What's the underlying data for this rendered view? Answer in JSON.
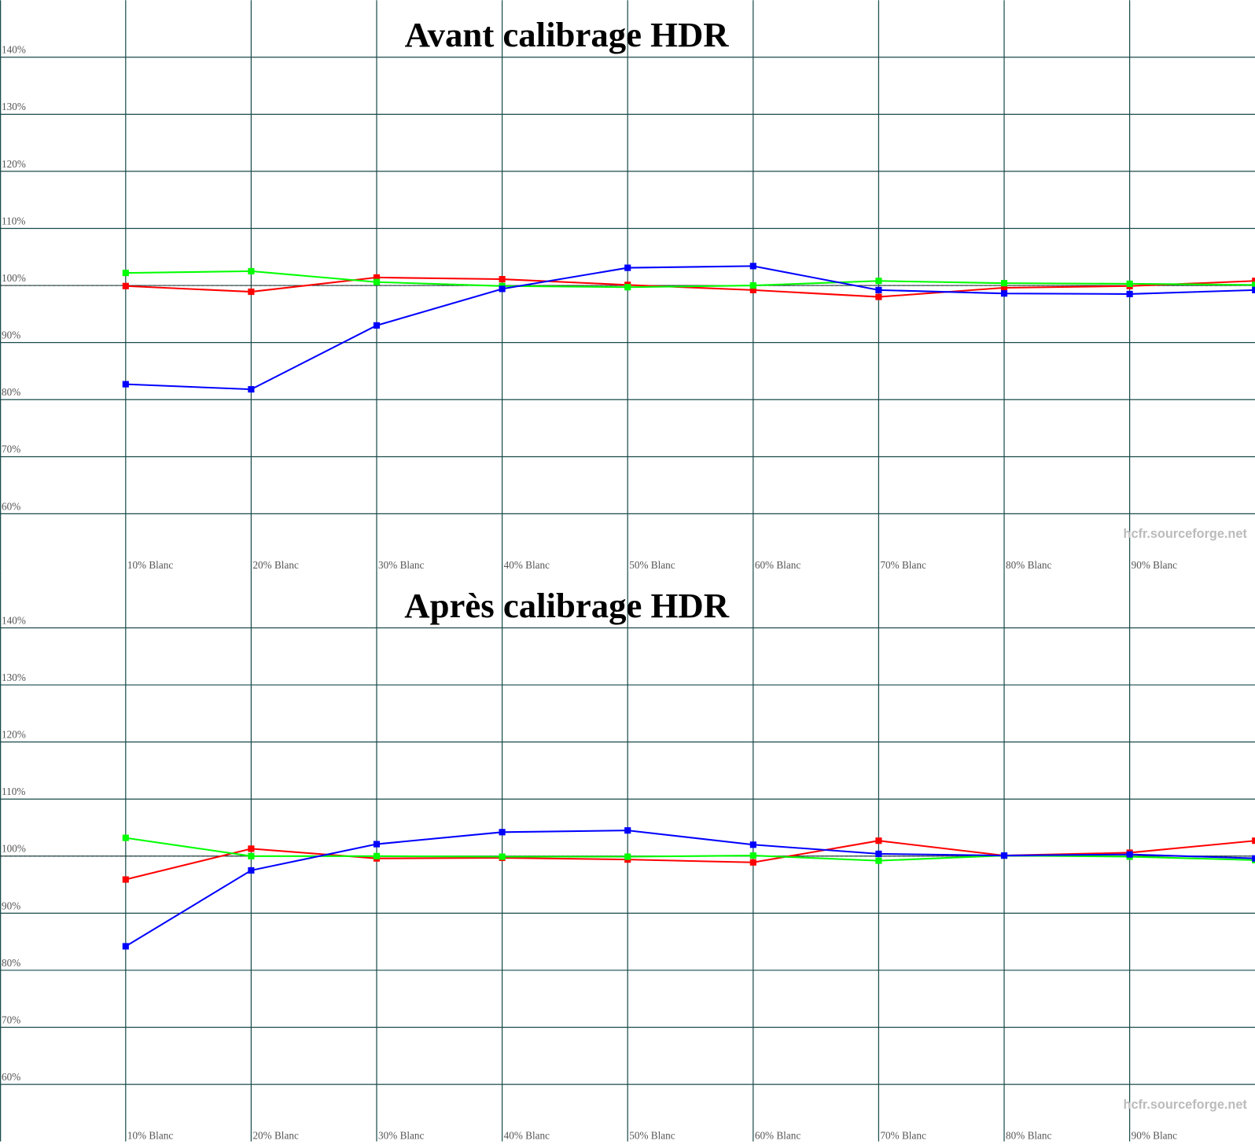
{
  "chart_data": [
    {
      "type": "line",
      "title": "Avant calibrage HDR",
      "watermark": "hcfr.sourceforge.net",
      "categories": [
        "10% Blanc",
        "20% Blanc",
        "30% Blanc",
        "40% Blanc",
        "50% Blanc",
        "60% Blanc",
        "70% Blanc",
        "80% Blanc",
        "90% Blanc",
        null
      ],
      "series": [
        {
          "color": "#ff0000",
          "values": [
            99.9,
            98.9,
            101.4,
            101.1,
            100.1,
            99.2,
            98.0,
            99.6,
            99.9,
            100.8
          ]
        },
        {
          "color": "#00ff00",
          "values": [
            102.2,
            102.5,
            100.6,
            99.9,
            99.7,
            100.0,
            100.8,
            100.4,
            100.3,
            100.1
          ]
        },
        {
          "color": "#0000ff",
          "values": [
            82.7,
            81.8,
            93.0,
            99.4,
            103.1,
            103.4,
            99.2,
            98.6,
            98.5,
            99.2
          ]
        }
      ],
      "ylim": [
        50,
        150
      ],
      "yticks": [
        {
          "value": 60,
          "label": "60%"
        },
        {
          "value": 70,
          "label": "70%"
        },
        {
          "value": 80,
          "label": "80%"
        },
        {
          "value": 90,
          "label": "90%"
        },
        {
          "value": 100,
          "label": "100%"
        },
        {
          "value": 110,
          "label": "110%"
        },
        {
          "value": 120,
          "label": "120%"
        },
        {
          "value": 130,
          "label": "130%"
        },
        {
          "value": 140,
          "label": "140%"
        }
      ],
      "reference_line": 100,
      "grid": true
    },
    {
      "type": "line",
      "title": "Après calibrage HDR",
      "watermark": "hcfr.sourceforge.net",
      "categories": [
        "10% Blanc",
        "20% Blanc",
        "30% Blanc",
        "40% Blanc",
        "50% Blanc",
        "60% Blanc",
        "70% Blanc",
        "80% Blanc",
        "90% Blanc",
        null
      ],
      "series": [
        {
          "color": "#ff0000",
          "values": [
            95.9,
            101.3,
            99.6,
            99.7,
            99.4,
            98.9,
            102.7,
            100.1,
            100.6,
            102.7
          ]
        },
        {
          "color": "#00ff00",
          "values": [
            103.2,
            100.0,
            100.0,
            99.9,
            99.9,
            100.1,
            99.2,
            100.1,
            99.9,
            99.3
          ]
        },
        {
          "color": "#0000ff",
          "values": [
            84.2,
            97.5,
            102.1,
            104.2,
            104.5,
            102.0,
            100.4,
            100.1,
            100.3,
            99.6
          ]
        }
      ],
      "ylim": [
        50,
        150
      ],
      "yticks": [
        {
          "value": 60,
          "label": "60%"
        },
        {
          "value": 70,
          "label": "70%"
        },
        {
          "value": 80,
          "label": "80%"
        },
        {
          "value": 90,
          "label": "90%"
        },
        {
          "value": 100,
          "label": "100%"
        },
        {
          "value": 110,
          "label": "110%"
        },
        {
          "value": 120,
          "label": "120%"
        },
        {
          "value": 130,
          "label": "130%"
        },
        {
          "value": 140,
          "label": "140%"
        }
      ],
      "reference_line": 100,
      "grid": true
    }
  ]
}
